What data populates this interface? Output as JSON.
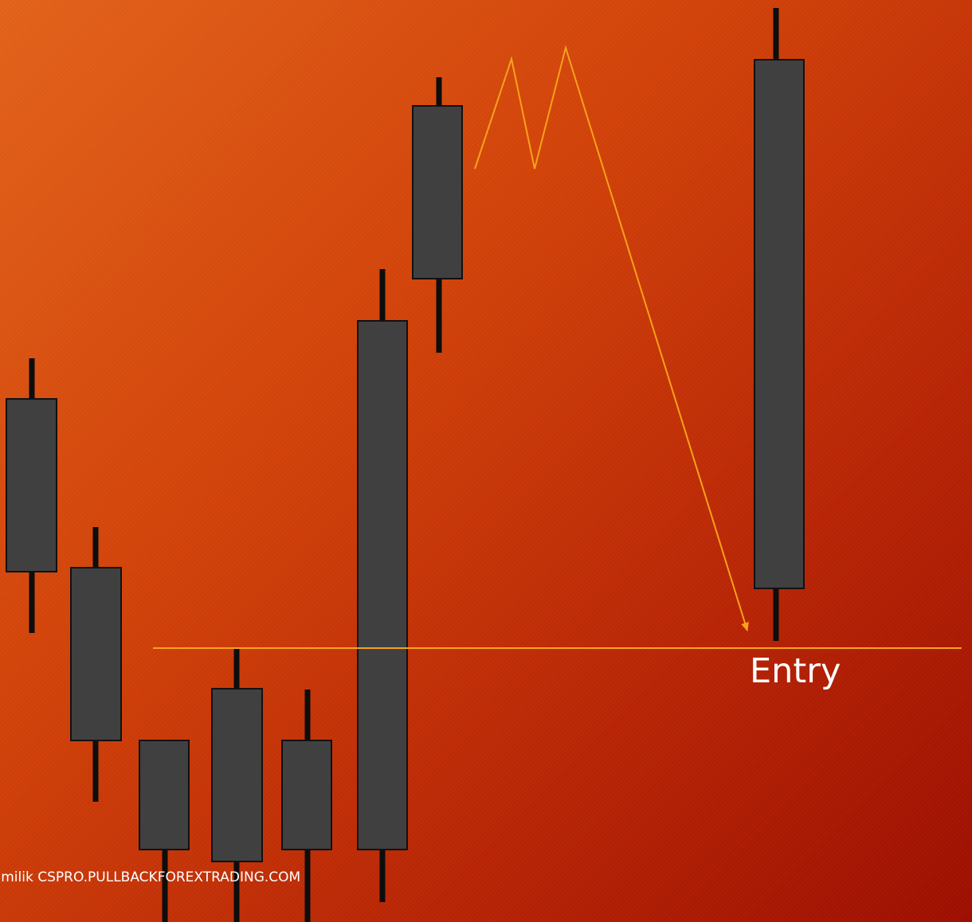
{
  "entry_label": "Entry",
  "watermark": "k milik CSPRO.PULLBACKFOREXTRADING.COM",
  "colors": {
    "background_start": "#e2621a",
    "background_end": "#9c0e00",
    "candle_body": "#404040",
    "candle_outline": "#111111",
    "wick": "#0d0d0d",
    "annotation_line": "#f7a21a",
    "text": "#ffffff"
  },
  "icons": {
    "path_arrow": "arrow-down-right-icon"
  }
}
